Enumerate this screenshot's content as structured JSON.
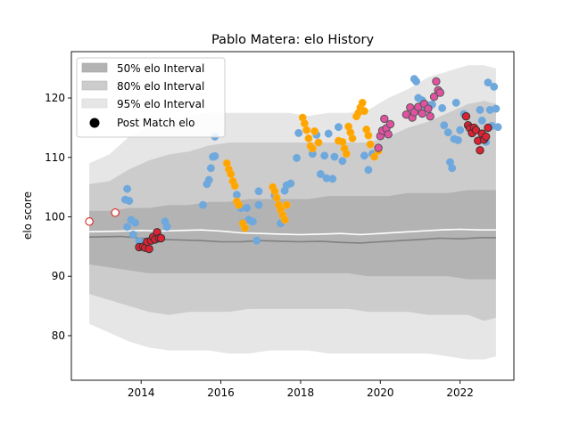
{
  "chart_data": {
    "type": "scatter",
    "title": "Pablo Matera: elo History",
    "xlabel": "",
    "ylabel": "elo score",
    "xlim": [
      2012.25,
      2023.35
    ],
    "ylim": [
      72.5,
      127.8
    ],
    "x_ticks": [
      2014,
      2016,
      2018,
      2020,
      2022
    ],
    "x_tick_labels": [
      "2014",
      "2016",
      "2018",
      "2020",
      "2022"
    ],
    "y_ticks": [
      80,
      90,
      100,
      110,
      120
    ],
    "y_tick_labels": [
      "80",
      "90",
      "100",
      "110",
      "120"
    ],
    "grid": false,
    "legend": {
      "placement": "top-left",
      "entries": [
        "50% elo Interval",
        "80% elo Interval",
        "95% elo Interval",
        "Post Match elo"
      ]
    },
    "colors": {
      "band50": "#b3b3b3",
      "band80": "#cccccc",
      "band95": "#e6e6e6",
      "median": "#808080",
      "mean": "#ffffff",
      "blue": "#6fa8dc",
      "orange": "#ffa500",
      "pink": "#e052a0",
      "red": "#dd2233",
      "marker_edge": "#555555"
    },
    "bands": {
      "x": [
        2012.7,
        2013.2,
        2013.7,
        2014.2,
        2014.7,
        2015.2,
        2015.7,
        2016.2,
        2016.7,
        2017.2,
        2017.7,
        2018.2,
        2018.7,
        2019.2,
        2019.7,
        2020.2,
        2020.7,
        2021.2,
        2021.7,
        2022.2,
        2022.6,
        2022.9
      ],
      "lo95": [
        82.0,
        80.5,
        79.0,
        78.0,
        77.5,
        77.5,
        77.5,
        77.0,
        77.0,
        77.5,
        77.5,
        77.5,
        77.0,
        77.0,
        77.0,
        77.0,
        77.0,
        77.0,
        76.5,
        76.0,
        76.0,
        76.5
      ],
      "lo80": [
        87.0,
        86.0,
        85.0,
        84.0,
        83.5,
        84.0,
        84.0,
        84.0,
        84.5,
        84.5,
        84.5,
        84.5,
        84.5,
        84.5,
        84.0,
        84.0,
        84.0,
        83.5,
        83.5,
        83.5,
        82.5,
        83.0
      ],
      "lo50": [
        92.0,
        91.5,
        91.0,
        90.5,
        90.5,
        90.5,
        90.5,
        90.5,
        90.5,
        90.5,
        90.5,
        90.5,
        90.5,
        90.5,
        90.0,
        90.0,
        90.0,
        90.0,
        90.0,
        89.5,
        89.5,
        89.5
      ],
      "hi50": [
        101.0,
        101.0,
        101.5,
        101.5,
        102.0,
        102.0,
        102.5,
        102.5,
        103.0,
        103.0,
        103.0,
        103.0,
        103.5,
        103.5,
        103.5,
        103.5,
        104.0,
        104.0,
        104.0,
        104.5,
        104.5,
        104.5
      ],
      "hi80": [
        105.5,
        106.0,
        108.0,
        109.5,
        110.5,
        111.0,
        112.0,
        112.5,
        112.5,
        112.5,
        112.5,
        112.5,
        112.5,
        112.5,
        112.5,
        113.5,
        115.0,
        116.0,
        117.5,
        119.0,
        119.5,
        119.0
      ],
      "hi95": [
        109.0,
        110.5,
        113.5,
        115.0,
        116.0,
        117.0,
        117.5,
        117.5,
        117.5,
        117.5,
        117.5,
        117.0,
        117.5,
        117.5,
        118.0,
        120.0,
        121.5,
        123.5,
        124.5,
        125.5,
        125.5,
        125.0
      ]
    },
    "median_line": {
      "x": [
        2012.7,
        2013.5,
        2014.0,
        2014.5,
        2015.0,
        2015.5,
        2016.0,
        2016.5,
        2017.0,
        2017.5,
        2018.0,
        2018.5,
        2019.0,
        2019.5,
        2020.0,
        2020.5,
        2021.0,
        2021.5,
        2022.0,
        2022.5,
        2022.9
      ],
      "y": [
        96.6,
        96.7,
        96.4,
        96.2,
        96.1,
        96.0,
        95.8,
        95.8,
        96.0,
        95.9,
        95.8,
        95.9,
        95.7,
        95.6,
        95.8,
        96.0,
        96.2,
        96.4,
        96.3,
        96.5,
        96.5
      ]
    },
    "mean_line": {
      "x": [
        2012.7,
        2013.5,
        2014.0,
        2014.5,
        2015.0,
        2015.5,
        2016.0,
        2016.5,
        2017.0,
        2017.5,
        2018.0,
        2018.5,
        2019.0,
        2019.5,
        2020.0,
        2020.5,
        2021.0,
        2021.5,
        2022.0,
        2022.5,
        2022.9
      ],
      "y": [
        97.5,
        97.6,
        97.7,
        97.6,
        97.7,
        97.8,
        97.6,
        97.3,
        97.2,
        97.1,
        97.0,
        97.1,
        97.2,
        97.0,
        97.2,
        97.4,
        97.6,
        97.8,
        97.9,
        97.8,
        97.8
      ]
    },
    "series": [
      {
        "group": "white",
        "points": [
          [
            2012.7,
            99.2
          ],
          [
            2013.35,
            100.7
          ]
        ]
      },
      {
        "group": "blue",
        "points": [
          [
            2013.65,
            104.7
          ],
          [
            2013.6,
            102.9
          ],
          [
            2013.7,
            102.7
          ],
          [
            2013.75,
            99.5
          ],
          [
            2013.85,
            99.0
          ],
          [
            2013.65,
            98.3
          ],
          [
            2013.8,
            97.0
          ],
          [
            2013.95,
            95.9
          ],
          [
            2014.6,
            99.2
          ],
          [
            2014.65,
            98.3
          ],
          [
            2015.55,
            102.0
          ],
          [
            2015.65,
            105.5
          ],
          [
            2015.7,
            106.2
          ],
          [
            2015.75,
            108.2
          ],
          [
            2015.8,
            110.1
          ],
          [
            2015.85,
            110.2
          ],
          [
            2015.85,
            113.5
          ],
          [
            2016.4,
            103.7
          ],
          [
            2016.5,
            101.5
          ],
          [
            2016.55,
            99.0
          ],
          [
            2016.65,
            101.5
          ],
          [
            2016.7,
            99.5
          ],
          [
            2016.8,
            99.2
          ],
          [
            2016.9,
            96.0
          ],
          [
            2016.95,
            102.0
          ],
          [
            2016.95,
            104.3
          ],
          [
            2017.35,
            103.6
          ],
          [
            2017.5,
            98.9
          ],
          [
            2017.6,
            104.4
          ],
          [
            2017.65,
            105.3
          ],
          [
            2017.75,
            105.6
          ],
          [
            2017.9,
            109.9
          ],
          [
            2017.95,
            114.1
          ],
          [
            2018.3,
            110.6
          ],
          [
            2018.4,
            113.8
          ],
          [
            2018.5,
            107.2
          ],
          [
            2018.6,
            110.3
          ],
          [
            2018.65,
            106.5
          ],
          [
            2018.7,
            114.0
          ],
          [
            2018.8,
            106.4
          ],
          [
            2018.85,
            110.1
          ],
          [
            2018.95,
            115.1
          ],
          [
            2019.05,
            109.4
          ],
          [
            2019.6,
            110.3
          ],
          [
            2019.7,
            107.9
          ],
          [
            2019.8,
            110.6
          ],
          [
            2020.85,
            123.2
          ],
          [
            2020.9,
            122.8
          ],
          [
            2020.95,
            120.0
          ],
          [
            2021.05,
            119.6
          ],
          [
            2021.15,
            118.2
          ],
          [
            2021.25,
            118.8
          ],
          [
            2021.3,
            118.9
          ],
          [
            2021.55,
            118.3
          ],
          [
            2021.6,
            115.4
          ],
          [
            2021.7,
            114.2
          ],
          [
            2021.75,
            109.2
          ],
          [
            2021.8,
            108.2
          ],
          [
            2021.9,
            119.2
          ],
          [
            2021.85,
            113.1
          ],
          [
            2021.95,
            112.9
          ],
          [
            2022.0,
            114.6
          ],
          [
            2022.1,
            117.3
          ],
          [
            2022.5,
            118.0
          ],
          [
            2022.55,
            116.2
          ],
          [
            2022.65,
            112.6
          ],
          [
            2022.7,
            122.6
          ],
          [
            2022.75,
            118.0
          ],
          [
            2022.8,
            115.3
          ],
          [
            2022.85,
            121.9
          ],
          [
            2022.9,
            118.2
          ],
          [
            2022.95,
            115.1
          ]
        ]
      },
      {
        "group": "orange",
        "points": [
          [
            2016.15,
            109.0
          ],
          [
            2016.2,
            108.0
          ],
          [
            2016.25,
            107.2
          ],
          [
            2016.3,
            106.0
          ],
          [
            2016.35,
            105.2
          ],
          [
            2016.4,
            102.6
          ],
          [
            2016.45,
            102.0
          ],
          [
            2016.55,
            98.9
          ],
          [
            2016.6,
            98.1
          ],
          [
            2017.3,
            105.0
          ],
          [
            2017.35,
            104.3
          ],
          [
            2017.4,
            103.2
          ],
          [
            2017.45,
            102.0
          ],
          [
            2017.5,
            101.2
          ],
          [
            2017.55,
            100.3
          ],
          [
            2017.6,
            99.5
          ],
          [
            2017.65,
            102.0
          ],
          [
            2018.05,
            116.7
          ],
          [
            2018.1,
            115.7
          ],
          [
            2018.15,
            114.6
          ],
          [
            2018.2,
            113.2
          ],
          [
            2018.25,
            111.9
          ],
          [
            2018.3,
            111.5
          ],
          [
            2018.35,
            114.4
          ],
          [
            2018.45,
            112.5
          ],
          [
            2018.95,
            112.8
          ],
          [
            2019.05,
            112.6
          ],
          [
            2019.1,
            111.5
          ],
          [
            2019.15,
            110.6
          ],
          [
            2019.2,
            115.2
          ],
          [
            2019.25,
            114.2
          ],
          [
            2019.3,
            113.2
          ],
          [
            2019.4,
            116.9
          ],
          [
            2019.45,
            117.5
          ],
          [
            2019.5,
            118.4
          ],
          [
            2019.55,
            119.2
          ],
          [
            2019.6,
            117.8
          ],
          [
            2019.65,
            114.7
          ],
          [
            2019.7,
            113.7
          ],
          [
            2019.75,
            112.2
          ],
          [
            2019.85,
            110.1
          ],
          [
            2019.95,
            111.1
          ]
        ]
      },
      {
        "group": "pink",
        "points": [
          [
            2019.95,
            111.6
          ],
          [
            2020.0,
            113.6
          ],
          [
            2020.05,
            114.5
          ],
          [
            2020.1,
            116.5
          ],
          [
            2020.15,
            114.9
          ],
          [
            2020.2,
            113.9
          ],
          [
            2020.25,
            115.6
          ],
          [
            2020.65,
            117.2
          ],
          [
            2020.75,
            118.4
          ],
          [
            2020.8,
            116.7
          ],
          [
            2020.85,
            117.6
          ],
          [
            2020.95,
            118.5
          ],
          [
            2021.05,
            117.4
          ],
          [
            2021.1,
            119.0
          ],
          [
            2021.2,
            118.2
          ],
          [
            2021.25,
            116.9
          ],
          [
            2021.35,
            120.2
          ],
          [
            2021.4,
            122.8
          ],
          [
            2021.45,
            121.3
          ],
          [
            2021.5,
            120.9
          ]
        ]
      },
      {
        "group": "red",
        "points": [
          [
            2013.95,
            94.9
          ],
          [
            2014.05,
            95.0
          ],
          [
            2014.1,
            94.8
          ],
          [
            2014.15,
            95.8
          ],
          [
            2014.2,
            94.6
          ],
          [
            2014.25,
            96.0
          ],
          [
            2014.3,
            96.6
          ],
          [
            2014.35,
            96.2
          ],
          [
            2014.4,
            97.4
          ],
          [
            2014.45,
            96.4
          ],
          [
            2014.5,
            96.4
          ],
          [
            2022.15,
            116.9
          ],
          [
            2022.2,
            115.4
          ],
          [
            2022.25,
            114.9
          ],
          [
            2022.3,
            114.1
          ],
          [
            2022.35,
            115.0
          ],
          [
            2022.4,
            114.6
          ],
          [
            2022.45,
            112.8
          ],
          [
            2022.5,
            111.2
          ],
          [
            2022.55,
            114.0
          ],
          [
            2022.6,
            113.0
          ],
          [
            2022.65,
            113.5
          ],
          [
            2022.7,
            115.0
          ]
        ]
      }
    ]
  }
}
